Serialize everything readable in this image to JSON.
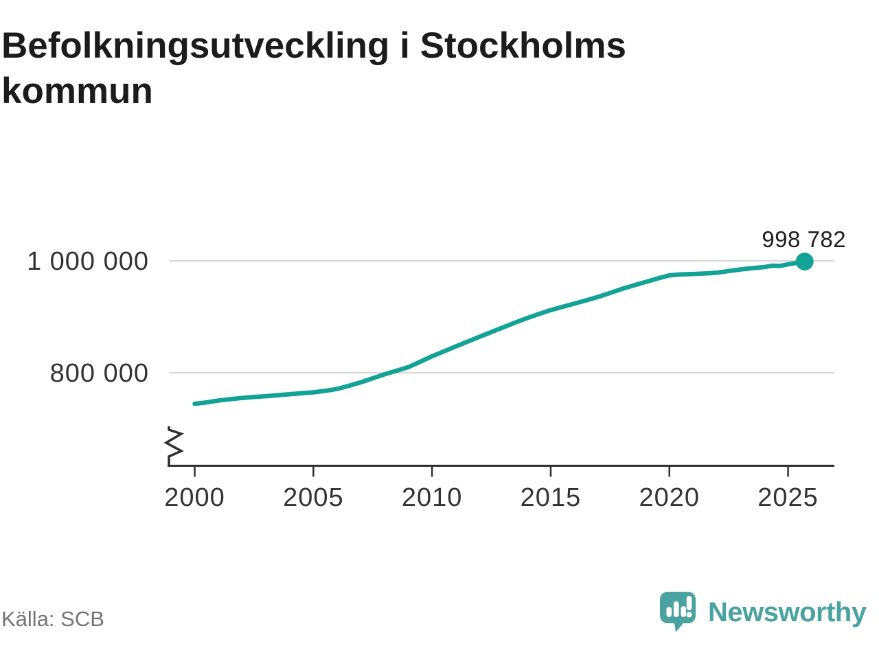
{
  "header": {
    "title": "Befolkningsutveckling i Stockholms kommun"
  },
  "footer": {
    "source": "Källa: SCB",
    "brand": "Newsworthy"
  },
  "colors": {
    "line": "#12a296",
    "grid": "#d8d8d8",
    "axis": "#2f2f2f",
    "tick_text": "#333333",
    "annotation_text": "#1c1c1c",
    "logo_teal": "#4aa3a0"
  },
  "chart_data": {
    "type": "line",
    "title": "Befolkningsutveckling i Stockholms kommun",
    "xlabel": "",
    "ylabel": "",
    "grid": "horizontal",
    "legend": "none",
    "axis_break_bottom_left": true,
    "xlim": [
      1999,
      2027
    ],
    "ylim_visible": [
      700000,
      1012000
    ],
    "x_ticks": [
      {
        "value": 2000,
        "label": "2000"
      },
      {
        "value": 2005,
        "label": "2005"
      },
      {
        "value": 2010,
        "label": "2010"
      },
      {
        "value": 2015,
        "label": "2015"
      },
      {
        "value": 2020,
        "label": "2020"
      },
      {
        "value": 2025,
        "label": "2025"
      }
    ],
    "y_ticks": [
      {
        "value": 1000000,
        "label": "1 000 000"
      },
      {
        "value": 800000,
        "label": "800 000"
      }
    ],
    "end_annotation": {
      "label": "998 782",
      "value": 998782
    },
    "series": [
      {
        "name": "Stockholms kommun",
        "color": "#12a296",
        "points": [
          [
            2000,
            744500
          ],
          [
            2000.5,
            747000
          ],
          [
            2001,
            750300
          ],
          [
            2001.5,
            752700
          ],
          [
            2002,
            755000
          ],
          [
            2002.5,
            756700
          ],
          [
            2003,
            758100
          ],
          [
            2003.5,
            759900
          ],
          [
            2004,
            761700
          ],
          [
            2004.5,
            763300
          ],
          [
            2005,
            765000
          ],
          [
            2005.5,
            767600
          ],
          [
            2006,
            771000
          ],
          [
            2006.5,
            776700
          ],
          [
            2007,
            782900
          ],
          [
            2007.5,
            790000
          ],
          [
            2008,
            797200
          ],
          [
            2008.5,
            803500
          ],
          [
            2009,
            810100
          ],
          [
            2009.5,
            819600
          ],
          [
            2010,
            829400
          ],
          [
            2010.5,
            838200
          ],
          [
            2011,
            847100
          ],
          [
            2011.5,
            855700
          ],
          [
            2012,
            864300
          ],
          [
            2012.5,
            872800
          ],
          [
            2013,
            881200
          ],
          [
            2013.5,
            889600
          ],
          [
            2014,
            897700
          ],
          [
            2014.5,
            905000
          ],
          [
            2015,
            912000
          ],
          [
            2015.5,
            917800
          ],
          [
            2016,
            923500
          ],
          [
            2016.5,
            929500
          ],
          [
            2017,
            935600
          ],
          [
            2017.5,
            942600
          ],
          [
            2018,
            949800
          ],
          [
            2018.5,
            956100
          ],
          [
            2019,
            962200
          ],
          [
            2019.5,
            968500
          ],
          [
            2020,
            974100
          ],
          [
            2020.4,
            975600
          ],
          [
            2020.8,
            976200
          ],
          [
            2021.2,
            976800
          ],
          [
            2021.6,
            977600
          ],
          [
            2022,
            978800
          ],
          [
            2022.5,
            981900
          ],
          [
            2023,
            984700
          ],
          [
            2023.5,
            987000
          ],
          [
            2024,
            988900
          ],
          [
            2024.35,
            991300
          ],
          [
            2024.65,
            990900
          ],
          [
            2025,
            993800
          ],
          [
            2025.35,
            996300
          ],
          [
            2025.7,
            998782
          ]
        ]
      }
    ]
  }
}
